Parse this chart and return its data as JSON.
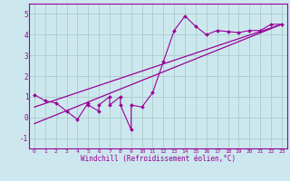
{
  "xlabel": "Windchill (Refroidissement éolien,°C)",
  "bg_color": "#cce8ee",
  "line_color": "#990099",
  "grid_color": "#aaccc8",
  "x_pts": [
    0,
    1,
    2,
    3,
    4,
    5,
    5,
    6,
    6,
    7,
    7,
    8,
    8,
    9,
    9,
    10,
    11,
    12,
    13,
    14,
    15,
    16,
    17,
    18,
    19,
    20,
    21,
    22,
    23
  ],
  "y_pts": [
    1.1,
    0.8,
    0.7,
    0.3,
    -0.1,
    0.7,
    0.6,
    0.3,
    0.6,
    1.0,
    0.6,
    1.0,
    0.6,
    -0.6,
    0.6,
    0.5,
    1.2,
    2.7,
    4.2,
    4.9,
    4.4,
    4.0,
    4.2,
    4.15,
    4.1,
    4.2,
    4.2,
    4.5,
    4.5
  ],
  "line1_x": [
    0,
    23
  ],
  "line1_y": [
    0.5,
    4.5
  ],
  "line2_x": [
    0,
    23
  ],
  "line2_y": [
    -0.3,
    4.5
  ],
  "xlim": [
    -0.5,
    23.5
  ],
  "ylim": [
    -1.5,
    5.5
  ],
  "xticks": [
    0,
    1,
    2,
    3,
    4,
    5,
    6,
    7,
    8,
    9,
    10,
    11,
    12,
    13,
    14,
    15,
    16,
    17,
    18,
    19,
    20,
    21,
    22,
    23
  ],
  "yticks": [
    -1,
    0,
    1,
    2,
    3,
    4,
    5
  ]
}
